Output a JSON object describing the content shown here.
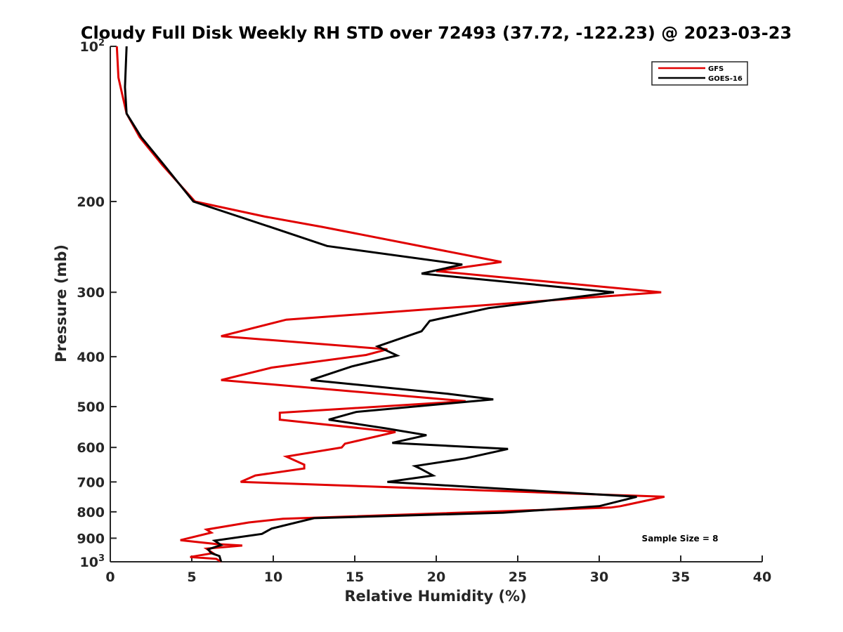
{
  "chart_data": {
    "type": "line",
    "title": "Cloudy Full Disk Weekly RH STD over 72493 (37.72, -122.23) @ 2023-03-23",
    "xlabel": "Relative Humidity (%)",
    "ylabel": "Pressure (mb)",
    "xlim": [
      0,
      40
    ],
    "ylim": [
      100,
      1000
    ],
    "y_scale": "log",
    "y_reversed": true,
    "grid": false,
    "legend_position": "top-right",
    "x_ticks": [
      {
        "value": 0,
        "label": "0"
      },
      {
        "value": 5,
        "label": "5"
      },
      {
        "value": 10,
        "label": "10"
      },
      {
        "value": 15,
        "label": "15"
      },
      {
        "value": 20,
        "label": "20"
      },
      {
        "value": 25,
        "label": "25"
      },
      {
        "value": 30,
        "label": "30"
      },
      {
        "value": 35,
        "label": "35"
      },
      {
        "value": 40,
        "label": "40"
      }
    ],
    "y_ticks": [
      {
        "value": 100,
        "label": "10",
        "sup": "2"
      },
      {
        "value": 200,
        "label": "200",
        "sup": ""
      },
      {
        "value": 300,
        "label": "300",
        "sup": ""
      },
      {
        "value": 400,
        "label": "400",
        "sup": ""
      },
      {
        "value": 500,
        "label": "500",
        "sup": ""
      },
      {
        "value": 600,
        "label": "600",
        "sup": ""
      },
      {
        "value": 700,
        "label": "700",
        "sup": ""
      },
      {
        "value": 800,
        "label": "800",
        "sup": ""
      },
      {
        "value": 900,
        "label": "900",
        "sup": ""
      },
      {
        "value": 1000,
        "label": "10",
        "sup": "3"
      }
    ],
    "series": [
      {
        "name": "GFS",
        "color": "#e00000",
        "points": [
          [
            0.4,
            100
          ],
          [
            0.5,
            115
          ],
          [
            1.0,
            135
          ],
          [
            1.8,
            150
          ],
          [
            3.2,
            170
          ],
          [
            5.2,
            200
          ],
          [
            9.5,
            214
          ],
          [
            13.0,
            224
          ],
          [
            24.0,
            262
          ],
          [
            20.0,
            273
          ],
          [
            33.8,
            300
          ],
          [
            10.8,
            339
          ],
          [
            6.8,
            365
          ],
          [
            17.0,
            387
          ],
          [
            15.7,
            397
          ],
          [
            9.9,
            420
          ],
          [
            6.8,
            444
          ],
          [
            21.8,
            488
          ],
          [
            10.4,
            514
          ],
          [
            10.4,
            530
          ],
          [
            17.5,
            560
          ],
          [
            14.4,
            590
          ],
          [
            14.2,
            600
          ],
          [
            10.8,
            625
          ],
          [
            11.9,
            648
          ],
          [
            11.9,
            659
          ],
          [
            8.9,
            680
          ],
          [
            8.0,
            700
          ],
          [
            34.0,
            748
          ],
          [
            31.3,
            780
          ],
          [
            30.7,
            785
          ],
          [
            10.6,
            825
          ],
          [
            8.5,
            839
          ],
          [
            5.9,
            866
          ],
          [
            6.2,
            878
          ],
          [
            4.3,
            908
          ],
          [
            6.5,
            924
          ],
          [
            8.1,
            930
          ],
          [
            5.9,
            943
          ],
          [
            6.3,
            962
          ],
          [
            4.9,
            979
          ],
          [
            6.5,
            987
          ],
          [
            6.8,
            1000
          ]
        ]
      },
      {
        "name": "GOES-16",
        "color": "#000000",
        "points": [
          [
            1.0,
            100
          ],
          [
            0.9,
            120
          ],
          [
            1.0,
            135
          ],
          [
            1.9,
            150
          ],
          [
            3.3,
            170
          ],
          [
            5.1,
            200
          ],
          [
            9.8,
            224
          ],
          [
            13.3,
            244
          ],
          [
            21.6,
            265
          ],
          [
            19.1,
            276
          ],
          [
            30.9,
            300
          ],
          [
            23.2,
            322
          ],
          [
            19.6,
            341
          ],
          [
            19.1,
            357
          ],
          [
            16.4,
            382
          ],
          [
            17.6,
            398
          ],
          [
            14.8,
            418
          ],
          [
            12.3,
            444
          ],
          [
            20.7,
            472
          ],
          [
            23.5,
            484
          ],
          [
            15.1,
            512
          ],
          [
            13.4,
            530
          ],
          [
            16.9,
            551
          ],
          [
            19.4,
            568
          ],
          [
            17.3,
            588
          ],
          [
            24.4,
            604
          ],
          [
            21.8,
            630
          ],
          [
            18.7,
            652
          ],
          [
            19.0,
            659
          ],
          [
            19.8,
            680
          ],
          [
            17.0,
            700
          ],
          [
            32.3,
            748
          ],
          [
            30.0,
            780
          ],
          [
            24.1,
            803
          ],
          [
            12.5,
            823
          ],
          [
            9.9,
            862
          ],
          [
            9.3,
            883
          ],
          [
            6.4,
            910
          ],
          [
            6.8,
            928
          ],
          [
            6.0,
            946
          ],
          [
            6.2,
            962
          ],
          [
            6.7,
            975
          ],
          [
            6.8,
            1000
          ]
        ]
      }
    ],
    "annotation": "Sample Size = 8"
  }
}
